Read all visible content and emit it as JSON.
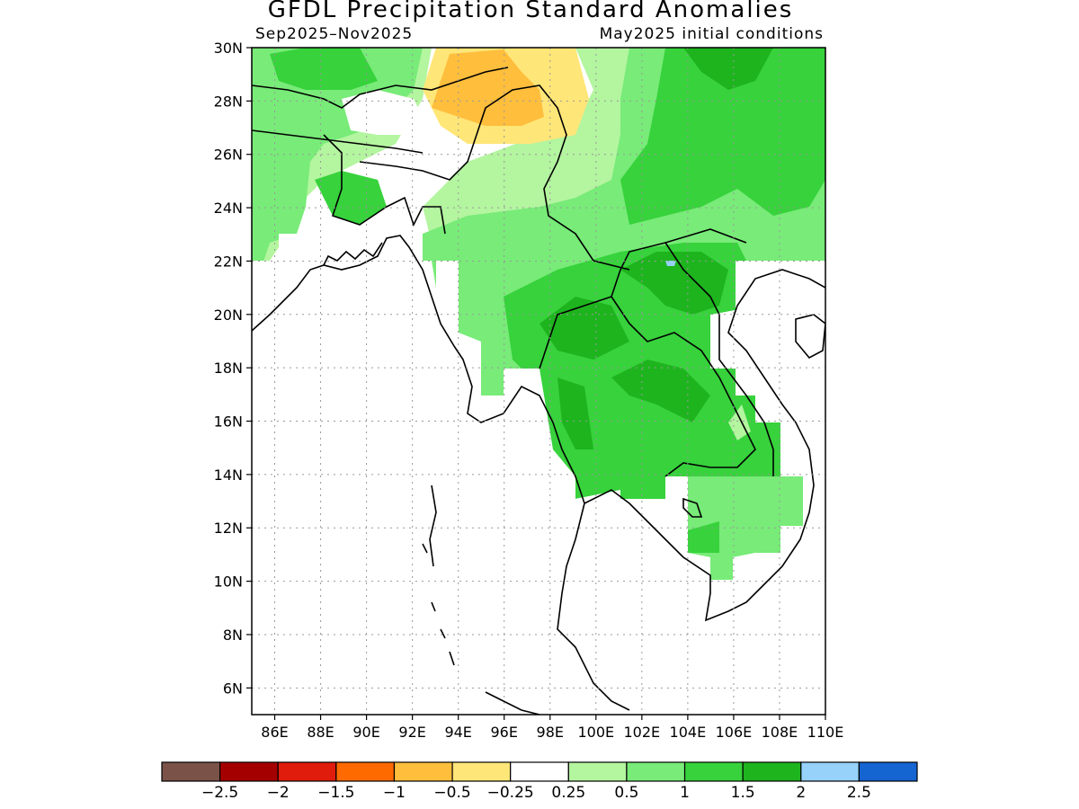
{
  "title": "GFDL Precipitation Standard Anomalies",
  "subtitle_left": "Sep2025–Nov2025",
  "subtitle_right": "May2025 initial conditions",
  "map": {
    "lat_labels": [
      "30N",
      "28N",
      "26N",
      "24N",
      "22N",
      "20N",
      "18N",
      "16N",
      "14N",
      "12N",
      "10N",
      "8N",
      "6N"
    ],
    "lon_labels": [
      "86E",
      "88E",
      "90E",
      "92E",
      "94E",
      "96E",
      "98E",
      "100E",
      "102E",
      "104E",
      "106E",
      "108E",
      "110E"
    ],
    "lat_range": [
      5,
      30
    ],
    "lon_range": [
      85,
      110
    ],
    "grid": "dotted"
  },
  "colorbar": {
    "colors": [
      "#7a5248",
      "#a50000",
      "#e01c0c",
      "#ff6a00",
      "#ffbe3c",
      "#ffe678",
      "#ffffff",
      "#b4f5a0",
      "#78eb78",
      "#37d23c",
      "#1eb41e",
      "#96d2fa",
      "#1464d2"
    ],
    "labels": [
      "−2.5",
      "−2",
      "−1.5",
      "−1",
      "−0.5",
      "−0.25",
      "0.25",
      "0.5",
      "1",
      "1.5",
      "2",
      "2.5"
    ]
  },
  "legend_levels": {
    "neg_025_05": "#ffe678",
    "neg_05_1": "#ffbe3c",
    "pos_025_05": "#b4f5a0",
    "pos_05_1": "#78eb78",
    "pos_1_15": "#37d23c",
    "pos_15_2": "#1eb41e",
    "pos_2_25": "#96d2fa"
  }
}
